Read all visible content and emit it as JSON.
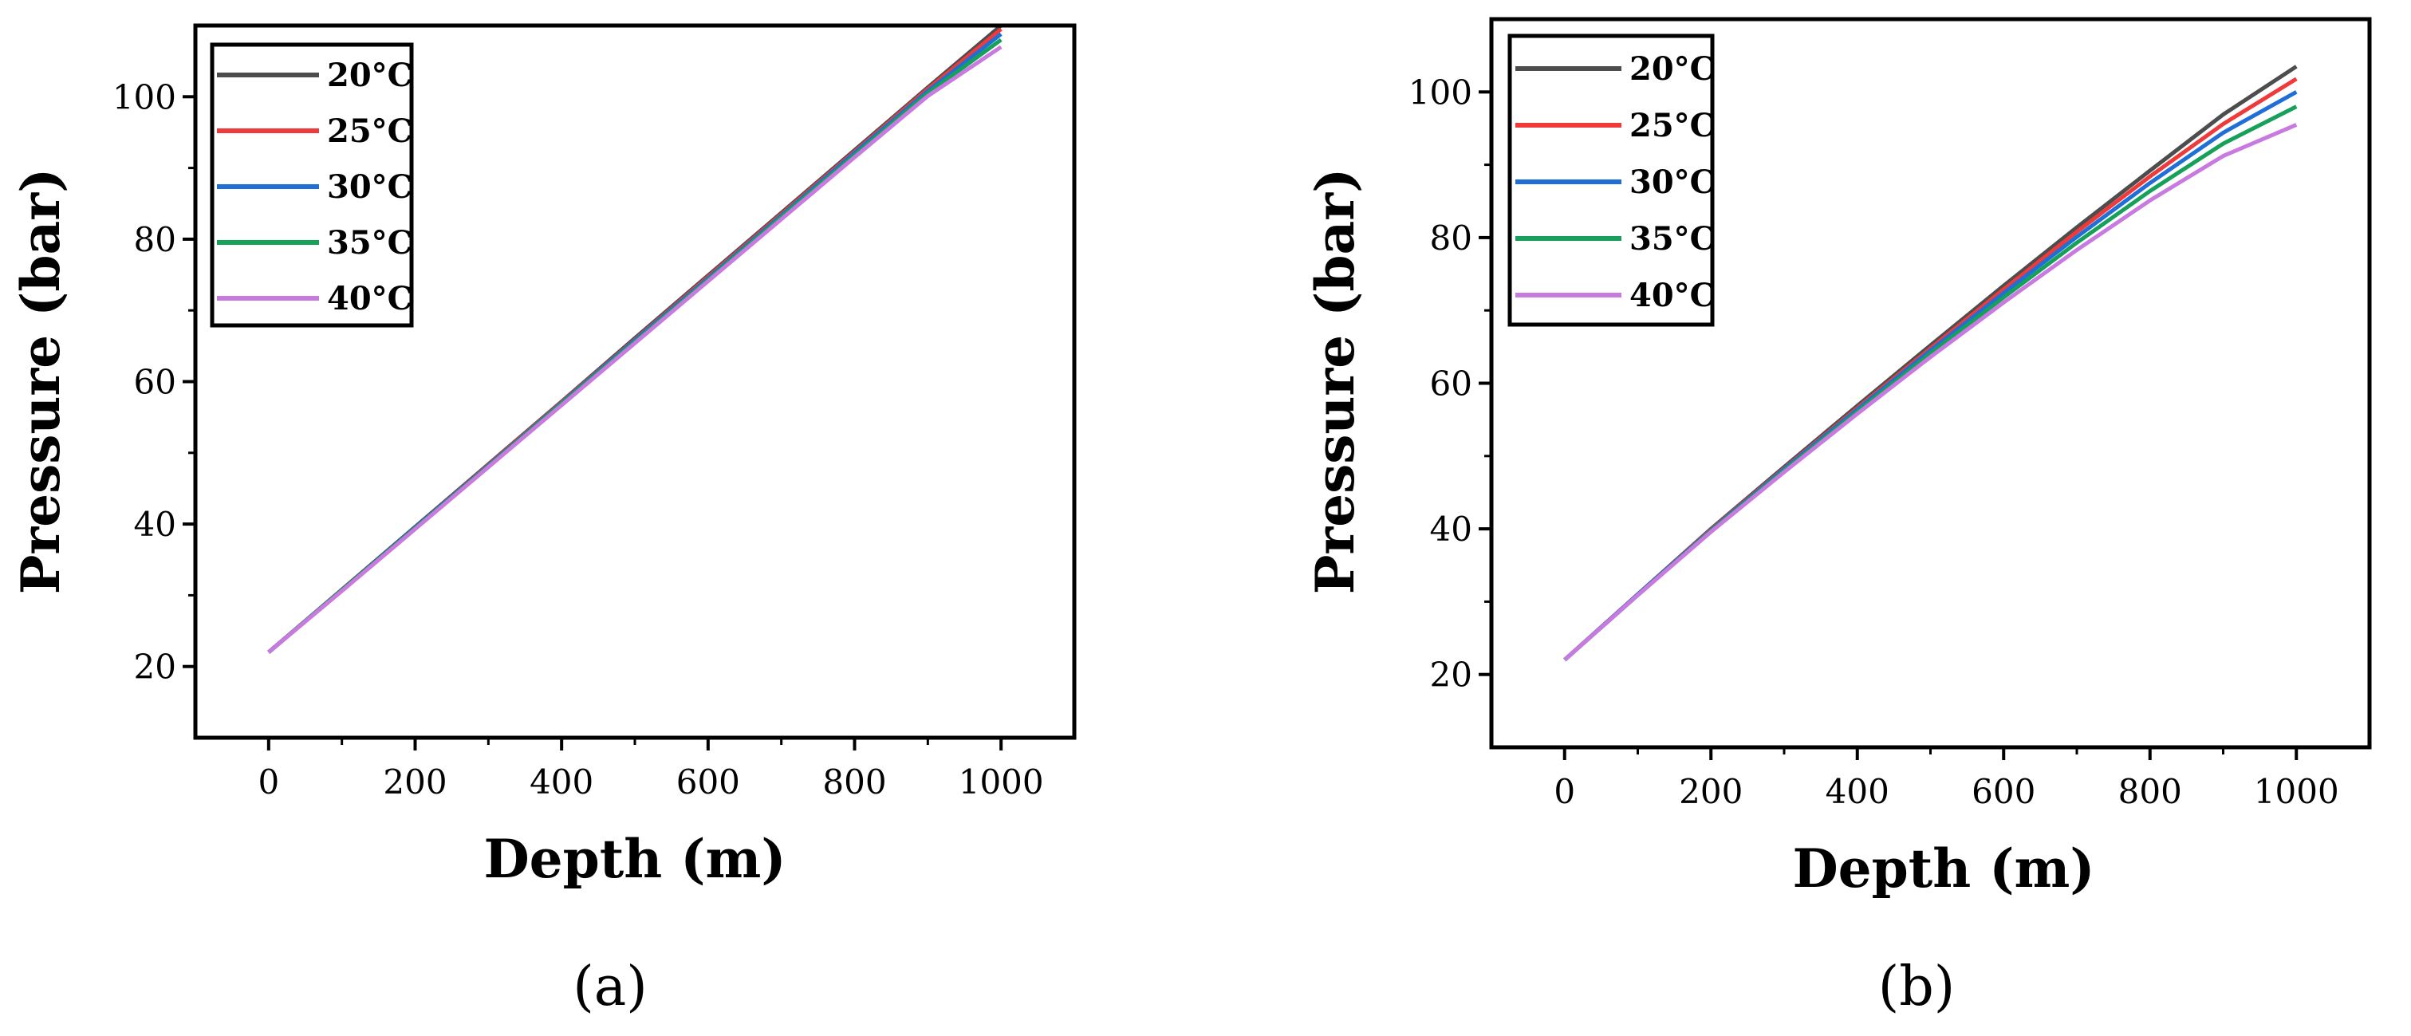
{
  "chart_data": [
    {
      "type": "line",
      "panel_label": "(a)",
      "xlabel": "Depth (m)",
      "ylabel": "Pressure (bar)",
      "xlim": [
        -100,
        1100
      ],
      "ylim": [
        10,
        110
      ],
      "xticks": [
        0,
        200,
        400,
        600,
        800,
        1000
      ],
      "yticks": [
        20,
        40,
        60,
        80,
        100
      ],
      "legend_position": "top-left",
      "x": [
        0,
        100,
        200,
        300,
        400,
        500,
        600,
        700,
        800,
        900,
        1000
      ],
      "series": [
        {
          "name": "20°C",
          "color": "#4d4d4d",
          "values": [
            22,
            30.8,
            39.6,
            48.4,
            57.2,
            66.1,
            74.9,
            83.7,
            92.5,
            101.3,
            110
          ]
        },
        {
          "name": "25°C",
          "color": "#ee3a3a",
          "values": [
            22,
            30.7,
            39.5,
            48.3,
            57.1,
            65.9,
            74.7,
            83.5,
            92.3,
            101.1,
            109.5
          ]
        },
        {
          "name": "30°C",
          "color": "#1f6fd6",
          "values": [
            22,
            30.7,
            39.5,
            48.2,
            57,
            65.8,
            74.5,
            83.3,
            92.1,
            100.8,
            108.8
          ]
        },
        {
          "name": "35°C",
          "color": "#16a05a",
          "values": [
            22,
            30.7,
            39.4,
            48.1,
            56.9,
            65.6,
            74.3,
            83.1,
            91.8,
            100.5,
            108
          ]
        },
        {
          "name": "40°C",
          "color": "#c87ae0",
          "values": [
            22,
            30.6,
            39.3,
            48,
            56.7,
            65.4,
            74.1,
            82.8,
            91.5,
            100.1,
            107
          ]
        }
      ]
    },
    {
      "type": "line",
      "panel_label": "(b)",
      "xlabel": "Depth (m)",
      "ylabel": "Pressure (bar)",
      "xlim": [
        -100,
        1100
      ],
      "ylim": [
        10,
        110
      ],
      "xticks": [
        0,
        200,
        400,
        600,
        800,
        1000
      ],
      "yticks": [
        20,
        40,
        60,
        80,
        100
      ],
      "legend_position": "top-left",
      "x": [
        0,
        100,
        200,
        300,
        400,
        500,
        600,
        700,
        800,
        900,
        1000
      ],
      "series": [
        {
          "name": "20°C",
          "color": "#4d4d4d",
          "values": [
            22,
            31,
            40,
            48.5,
            56.9,
            65.2,
            73.4,
            81.4,
            89.2,
            96.9,
            103.5
          ]
        },
        {
          "name": "25°C",
          "color": "#ee3a3a",
          "values": [
            22,
            31,
            39.9,
            48.3,
            56.6,
            64.8,
            72.9,
            80.8,
            88.4,
            95.6,
            101.8
          ]
        },
        {
          "name": "30°C",
          "color": "#1f6fd6",
          "values": [
            22,
            31,
            39.8,
            48.2,
            56.4,
            64.5,
            72.4,
            80.1,
            87.5,
            94.4,
            100
          ]
        },
        {
          "name": "35°C",
          "color": "#16a05a",
          "values": [
            22,
            30.9,
            39.7,
            48,
            56.1,
            64.1,
            71.8,
            79.3,
            86.4,
            92.9,
            98
          ]
        },
        {
          "name": "40°C",
          "color": "#c87ae0",
          "values": [
            22,
            30.9,
            39.6,
            47.8,
            55.8,
            63.6,
            71.1,
            78.3,
            85.1,
            91.2,
            95.5
          ]
        }
      ]
    }
  ]
}
